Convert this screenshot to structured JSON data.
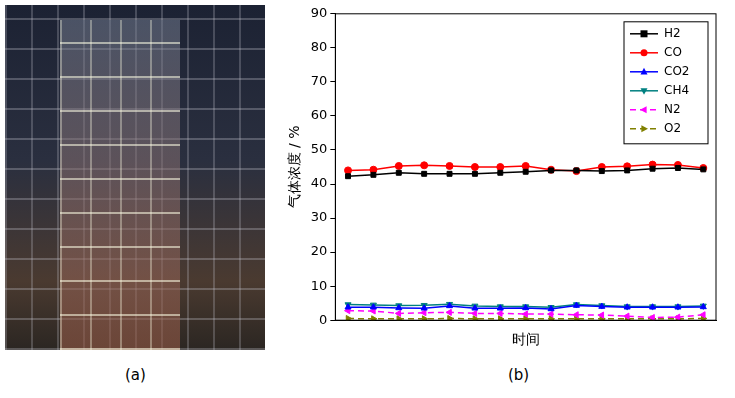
{
  "panel_labels": [
    "(a)",
    "(b)"
  ],
  "chart_data": {
    "type": "line",
    "y_label": "气体浓度 / %",
    "x_label": "时间",
    "categories": [
      null,
      null,
      null,
      null,
      null,
      null,
      null,
      null,
      null,
      null,
      null,
      null,
      null,
      null,
      null
    ],
    "series": [
      {
        "name": "H2",
        "color": "#000000",
        "marker": "square",
        "line_style": "solid",
        "values": [
          42.3,
          42.7,
          43.3,
          43.0,
          43.0,
          43.0,
          43.3,
          43.6,
          44.0,
          44.0,
          43.8,
          44.0,
          44.5,
          44.7,
          44.3
        ]
      },
      {
        "name": "CO",
        "color": "#ff0000",
        "marker": "circle",
        "line_style": "solid",
        "values": [
          44.0,
          44.2,
          45.3,
          45.5,
          45.3,
          45.0,
          45.0,
          45.3,
          44.2,
          43.8,
          45.0,
          45.2,
          45.7,
          45.6,
          44.7
        ]
      },
      {
        "name": "CO2",
        "color": "#0000ff",
        "marker": "triangle-up",
        "line_style": "solid",
        "values": [
          3.8,
          3.8,
          3.6,
          3.5,
          4.2,
          3.5,
          3.5,
          3.6,
          3.3,
          4.3,
          4.0,
          3.8,
          3.8,
          3.8,
          3.9
        ]
      },
      {
        "name": "CH4",
        "color": "#008080",
        "marker": "triangle-down",
        "line_style": "solid",
        "values": [
          4.6,
          4.5,
          4.3,
          4.4,
          4.7,
          4.2,
          4.0,
          4.0,
          3.8,
          4.6,
          4.3,
          4.0,
          4.0,
          4.0,
          4.2
        ]
      },
      {
        "name": "N2",
        "color": "#ff00ff",
        "marker": "triangle-left",
        "line_style": "dashed",
        "values": [
          2.8,
          2.7,
          2.0,
          2.2,
          2.3,
          2.0,
          2.0,
          1.8,
          1.8,
          1.6,
          1.5,
          1.2,
          0.8,
          0.9,
          1.6
        ]
      },
      {
        "name": "O2",
        "color": "#808000",
        "marker": "triangle-right",
        "line_style": "dashed",
        "values": [
          0.5,
          0.4,
          0.4,
          0.4,
          0.5,
          0.4,
          0.4,
          0.4,
          0.4,
          0.4,
          0.4,
          0.4,
          0.4,
          0.4,
          0.5
        ]
      }
    ],
    "ylim": [
      0,
      90
    ],
    "yticks": [
      0,
      10,
      20,
      30,
      40,
      50,
      60,
      70,
      80,
      90
    ],
    "grid": false,
    "legend": "upper right",
    "tick_labels": "y"
  }
}
